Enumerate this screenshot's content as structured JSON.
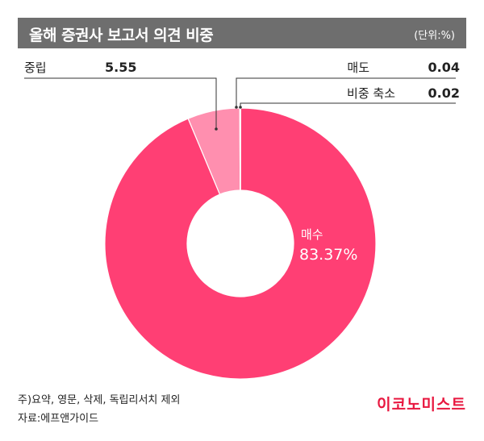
{
  "header": {
    "title": "올해 증권사 보고서 의견 비중",
    "unit": "(단위:%)"
  },
  "chart_data": {
    "type": "pie",
    "title": "올해 증권사 보고서 의견 비중",
    "unit": "(단위:%)",
    "donut": true,
    "slices": [
      {
        "label": "매수",
        "value": 83.37,
        "value_text": "83.37%",
        "color": "#ff3f74"
      },
      {
        "label": "중립",
        "value": 5.55,
        "value_text": "5.55",
        "color": "#ff8faf"
      },
      {
        "label": "매도",
        "value": 0.04,
        "value_text": "0.04",
        "color": "#bbbbbb"
      },
      {
        "label": "비중 축소",
        "value": 0.02,
        "value_text": "0.02",
        "color": "#dddddd"
      }
    ]
  },
  "footer": {
    "note": "주)요약, 영문, 삭제, 독립리서치 제외",
    "source": "자료:에프앤가이드",
    "brand": "이코노미스트"
  },
  "colors": {
    "accent": "#ff3f74",
    "title_bg": "#6e6e6e",
    "brand": "#e8173f"
  }
}
